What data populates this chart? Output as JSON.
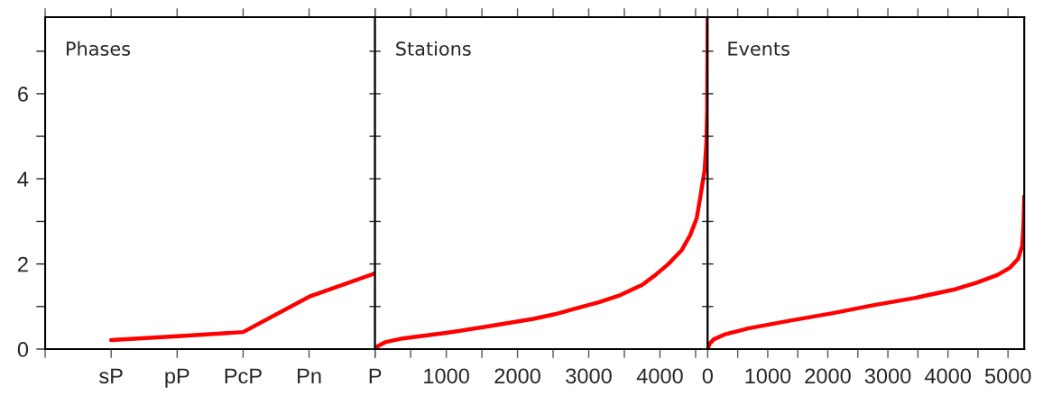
{
  "chart_data": [
    {
      "type": "line",
      "title": "Phases",
      "categories": [
        null,
        "sP",
        "pP",
        "PcP",
        "Pn",
        "P"
      ],
      "series": [
        {
          "color": "#ff0000",
          "values": [
            null,
            0.21,
            0.3,
            0.4,
            1.23,
            1.78
          ]
        }
      ],
      "ylim": [
        0,
        7.8
      ],
      "yticks": [
        0,
        {
          "value": 1,
          "label": null
        },
        2,
        {
          "value": 3,
          "label": null
        },
        4,
        {
          "value": 5,
          "label": null
        },
        6,
        {
          "value": 7,
          "label": null
        }
      ],
      "grid": false,
      "legend": false
    },
    {
      "type": "line",
      "title": "Stations",
      "series": [
        {
          "color": "#ff0000",
          "x": [
            0,
            49,
            141,
            386,
            998,
            1610,
            2222,
            2528,
            2834,
            3140,
            3446,
            3752,
            3936,
            4119,
            4303,
            4425,
            4517,
            4578,
            4627,
            4651,
            4663,
            4670
          ],
          "values": [
            0,
            0.08,
            0.16,
            0.25,
            0.38,
            0.54,
            0.71,
            0.82,
            0.96,
            1.1,
            1.27,
            1.51,
            1.74,
            2.0,
            2.32,
            2.68,
            3.08,
            3.69,
            4.2,
            4.81,
            5.63,
            7.8
          ]
        }
      ],
      "xlim": [
        0,
        4670
      ],
      "xticks": [
        {
          "value": 0,
          "label": null
        },
        {
          "value": 500,
          "label": null
        },
        1000,
        {
          "value": 1500,
          "label": null
        },
        2000,
        {
          "value": 2500,
          "label": null
        },
        3000,
        {
          "value": 3500,
          "label": null
        },
        4000,
        {
          "value": 4500,
          "label": null
        }
      ],
      "ylim": [
        0,
        7.8
      ],
      "yticks": [
        {
          "value": 0,
          "label": null
        },
        {
          "value": 1,
          "label": null
        },
        {
          "value": 2,
          "label": null
        },
        {
          "value": 3,
          "label": null
        },
        {
          "value": 4,
          "label": null
        },
        {
          "value": 5,
          "label": null
        },
        {
          "value": 6,
          "label": null
        },
        {
          "value": 7,
          "label": null
        }
      ],
      "tick_labels": "x",
      "grid": false,
      "legend": false
    },
    {
      "type": "line",
      "title": "Events",
      "series": [
        {
          "color": "#ff0000",
          "x": [
            0,
            34,
            103,
            276,
            689,
            1378,
            2067,
            2756,
            3445,
            4134,
            4478,
            4823,
            5030,
            5168,
            5236,
            5257,
            5270
          ],
          "values": [
            0,
            0.13,
            0.23,
            0.34,
            0.49,
            0.67,
            0.84,
            1.03,
            1.2,
            1.41,
            1.56,
            1.74,
            1.91,
            2.12,
            2.42,
            2.88,
            3.59
          ]
        }
      ],
      "xlim": [
        0,
        5270
      ],
      "xticks": [
        0,
        {
          "value": 500,
          "label": null
        },
        1000,
        {
          "value": 1500,
          "label": null
        },
        2000,
        {
          "value": 2500,
          "label": null
        },
        3000,
        {
          "value": 3500,
          "label": null
        },
        4000,
        {
          "value": 4500,
          "label": null
        },
        5000
      ],
      "ylim": [
        0,
        7.8
      ],
      "yticks": [
        {
          "value": 0,
          "label": null
        },
        {
          "value": 1,
          "label": null
        },
        {
          "value": 2,
          "label": null
        },
        {
          "value": 3,
          "label": null
        },
        {
          "value": 4,
          "label": null
        },
        {
          "value": 5,
          "label": null
        },
        {
          "value": 6,
          "label": null
        },
        {
          "value": 7,
          "label": null
        }
      ],
      "tick_labels": "x",
      "grid": false,
      "legend": false
    }
  ]
}
